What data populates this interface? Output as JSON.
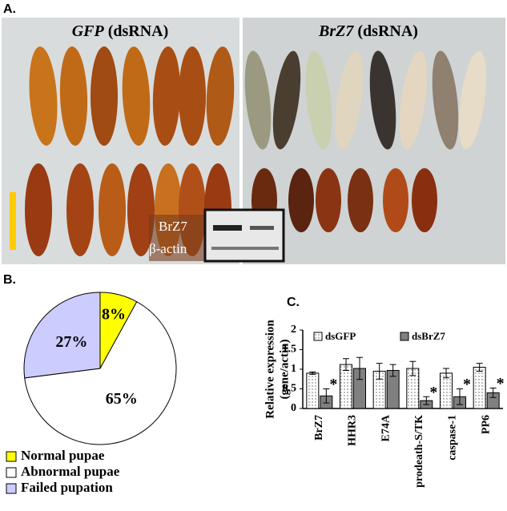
{
  "panels": {
    "a": "A.",
    "b": "B.",
    "c": "C.",
    "left_photo": [
      "GFP",
      " (dsRNA)"
    ],
    "right_photo": [
      "BrZ7",
      " (dsRNA)"
    ],
    "blot": [
      "BrZ7",
      "β-actin"
    ]
  },
  "chart_data": [
    {
      "type": "pie",
      "categories": [
        "Normal pupae",
        "Abnormal pupae",
        "Failed pupation"
      ],
      "values": [
        8,
        65,
        27
      ],
      "value_labels": [
        "8%",
        "65%",
        "27%"
      ],
      "colors": [
        "#ffff00",
        "#ffffff",
        "#ccccff"
      ]
    },
    {
      "type": "bar",
      "ylabel": [
        "Relative expression",
        "(gene/actin)"
      ],
      "categories": [
        "BrZ7",
        "HHR3",
        "E74A",
        "prodeath-S/TK",
        "caspase-1",
        "PP6"
      ],
      "ylim": [
        0,
        2
      ],
      "yticks": [
        0,
        0.5,
        1,
        1.5,
        2
      ],
      "series": [
        {
          "name": "dsGFP",
          "color": "#ffffff",
          "pattern": "dots",
          "values": [
            0.9,
            1.12,
            0.95,
            1.02,
            0.9,
            1.05
          ],
          "errors": [
            0.03,
            0.15,
            0.2,
            0.18,
            0.12,
            0.1
          ]
        },
        {
          "name": "dsBrZ7",
          "color": "#808080",
          "values": [
            0.32,
            1.02,
            0.97,
            0.2,
            0.3,
            0.4
          ],
          "errors": [
            0.18,
            0.28,
            0.15,
            0.1,
            0.2,
            0.12
          ],
          "markers": [
            "*",
            null,
            null,
            "*",
            "*",
            "*"
          ]
        }
      ]
    }
  ]
}
